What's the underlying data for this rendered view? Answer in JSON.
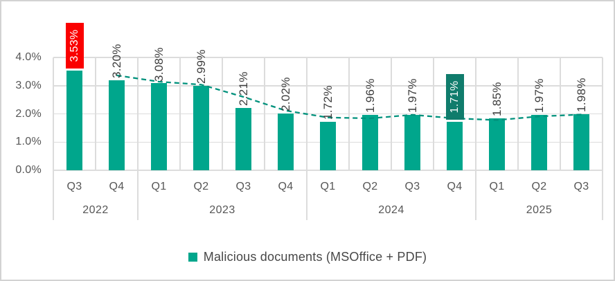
{
  "colors": {
    "bar": "#00a68c",
    "trend": "#00917c",
    "grid": "#dcdcdc",
    "axis_text": "#565656",
    "label_text": "#3d3d3d",
    "highlight_text": "#ffffff",
    "highlight_max_bg": "#fa0000",
    "highlight_min_bg": "#107c6c"
  },
  "chart_data": {
    "type": "bar",
    "title": "",
    "legend": "Malicious documents (MSOffice + PDF)",
    "legend_position": "bottom",
    "categories": [
      "Q3",
      "Q4",
      "Q1",
      "Q2",
      "Q3",
      "Q4",
      "Q1",
      "Q2",
      "Q3",
      "Q4",
      "Q1",
      "Q2",
      "Q3"
    ],
    "year_groups": [
      {
        "label": "2022",
        "quarters": 2
      },
      {
        "label": "2023",
        "quarters": 4
      },
      {
        "label": "2024",
        "quarters": 4
      },
      {
        "label": "2025",
        "quarters": 3
      }
    ],
    "values": [
      3.53,
      3.2,
      3.08,
      2.99,
      2.21,
      2.02,
      1.72,
      1.96,
      1.97,
      1.71,
      1.85,
      1.97,
      1.98
    ],
    "value_labels": [
      "3.53%",
      "3.20%",
      "3.08%",
      "2.99%",
      "2.21%",
      "2.02%",
      "1.72%",
      "1.96%",
      "1.97%",
      "1.71%",
      "1.85%",
      "1.97%",
      "1.98%"
    ],
    "highlights": [
      {
        "index": 0,
        "reason": "peak",
        "background": "#fa0000",
        "text_color": "#ffffff"
      },
      {
        "index": 9,
        "reason": "low",
        "background": "#107c6c",
        "text_color": "#ffffff"
      }
    ],
    "trendline": {
      "style": "dashed",
      "description": "2-period moving average",
      "start_index": 1,
      "values": [
        3.365,
        3.14,
        3.035,
        2.6,
        2.115,
        1.87,
        1.84,
        1.965,
        1.84,
        1.78,
        1.91,
        1.975
      ]
    },
    "y_axis": {
      "min": 0,
      "max": 4,
      "tick_labels": [
        "0.0%",
        "1.0%",
        "2.0%",
        "3.0%",
        "4.0%"
      ],
      "grid": true
    }
  }
}
